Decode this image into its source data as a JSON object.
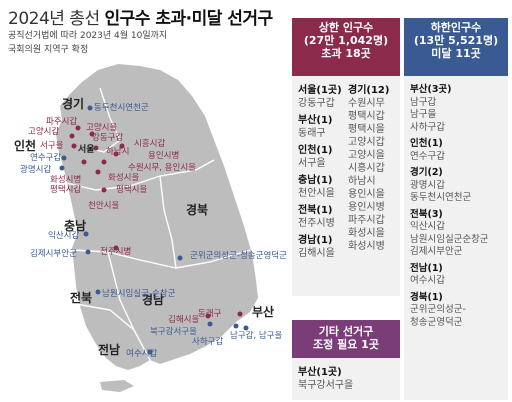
{
  "header": {
    "title_prefix": "2024년 총선 ",
    "title_bold": "인구수 초과·미달 선거구",
    "subtitle1": "공직선거법에 따라 2023년 4월 10일까지",
    "subtitle2": "국회의원 지역구 확정"
  },
  "colors": {
    "upper": "#8b2a4a",
    "lower": "#3a5a94",
    "other": "#7b3d78",
    "map": "#bdbdbd",
    "panel": "#f1f1f1"
  },
  "map": {
    "regions": [
      "경기",
      "인천",
      "충남",
      "경북",
      "전북",
      "경남",
      "전남"
    ],
    "busan": "부산",
    "seoul": "서울",
    "upper_labels": [
      "파주시갑",
      "고양시갑",
      "서구을",
      "강동구갑",
      "화성시병",
      "평택시갑",
      "천안시을",
      "고양시을",
      "하남시",
      "시흥시갑",
      "용인시병",
      "수원시무, 용인시을",
      "화성시을",
      "평택시을",
      "전주시병",
      "김해시을",
      "동래구"
    ],
    "lower_labels": [
      "동두천시연천군",
      "연수구갑",
      "광명시갑",
      "익산시갑",
      "김제시부안군",
      "군위군의성군-청송군영덕군",
      "남원시임실군-순창군",
      "북구강서구을",
      "사하구갑",
      "남구갑, 남구을",
      "여수시갑"
    ]
  },
  "upper_panel": {
    "header_lines": [
      "상한 인구수",
      "(27만 1,042명)",
      "초과 18곳"
    ],
    "col1": [
      {
        "region": "서울(1곳)",
        "items": [
          "강동구갑"
        ]
      },
      {
        "region": "부산(1)",
        "items": [
          "동래구"
        ]
      },
      {
        "region": "인천(1)",
        "items": [
          "서구을"
        ]
      },
      {
        "region": "충남(1)",
        "items": [
          "천안시을"
        ]
      },
      {
        "region": "전북(1)",
        "items": [
          "전주시병"
        ]
      },
      {
        "region": "경남(1)",
        "items": [
          "김해시을"
        ]
      }
    ],
    "col2": [
      {
        "region": "경기(12)",
        "items": [
          "수원시무",
          "평택시갑",
          "평택시을",
          "고양시갑",
          "고양시을",
          "시흥시갑",
          "하남시",
          "용인시을",
          "용인시병",
          "파주시갑",
          "화성시을",
          "화성시병"
        ]
      }
    ]
  },
  "lower_panel": {
    "header_lines": [
      "하한인구수",
      "(13만 5,521명)",
      "미달 11곳"
    ],
    "groups": [
      {
        "region": "부산(3곳)",
        "items": [
          "남구갑",
          "남구을",
          "사하구갑"
        ]
      },
      {
        "region": "인천(1)",
        "items": [
          "연수구갑"
        ]
      },
      {
        "region": "경기(2)",
        "items": [
          "광명시갑",
          "동두천시연천군"
        ]
      },
      {
        "region": "전북(3)",
        "items": [
          "익산시갑",
          "남원시임실군순창군",
          "김제시부안군"
        ]
      },
      {
        "region": "전남(1)",
        "items": [
          "여수시갑"
        ]
      },
      {
        "region": "경북(1)",
        "items": [
          "군위군의성군-",
          "청송군영덕군"
        ]
      }
    ]
  },
  "other_panel": {
    "header_lines": [
      "기타 선거구",
      "조정 필요 1곳"
    ],
    "groups": [
      {
        "region": "부산(1곳)",
        "items": [
          "북구강서구을"
        ]
      }
    ]
  }
}
